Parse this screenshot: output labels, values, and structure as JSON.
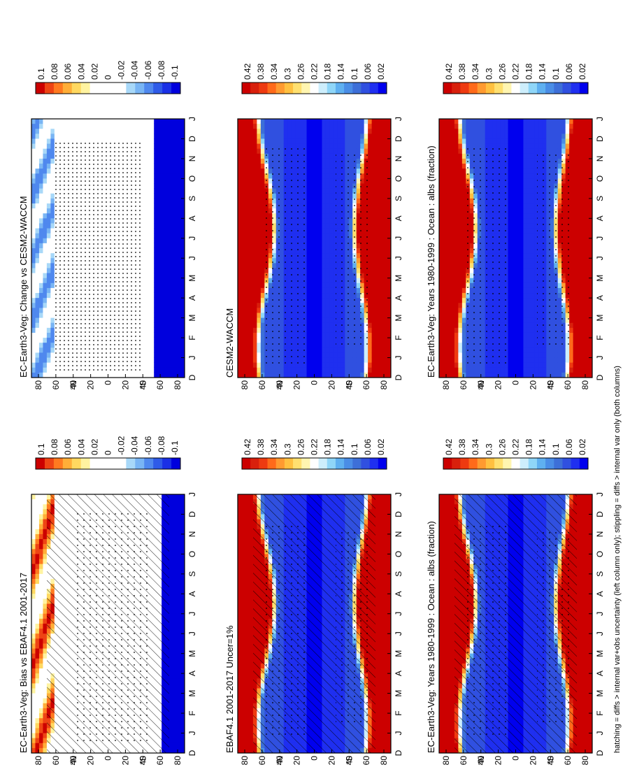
{
  "footer": "hatching = diffs > internal var+obs uncertainty (left column only); stippling = diffs > internal var only (both columns)",
  "palettes": {
    "abs": [
      "#0000ee",
      "#1f2ff0",
      "#3050e0",
      "#3d6fd8",
      "#4a8de6",
      "#5fb0f0",
      "#8fd6f8",
      "#cdeefc",
      "#ffffff",
      "#fff5b0",
      "#ffe070",
      "#ffc040",
      "#ff9a30",
      "#ff6a1a",
      "#ee3a10",
      "#d8200c",
      "#cc0000"
    ],
    "diff": [
      "#0000dd",
      "#1a30e6",
      "#2f5be8",
      "#4f88ee",
      "#79b5f4",
      "#a8d8f8",
      "#ffffff",
      "#ffffff",
      "#ffffff",
      "#ffffff",
      "#fff3a0",
      "#ffd860",
      "#ffae38",
      "#ff7a20",
      "#ee4414",
      "#cc0000"
    ]
  },
  "chart_data": [
    {
      "type": "heatmap",
      "title": "EC-Earth3-Veg: Years 1980-1999 : Ocean : albs (fraction)",
      "x_ticks": [
        "D",
        "J",
        "F",
        "M",
        "A",
        "M",
        "J",
        "J",
        "A",
        "S",
        "O",
        "N",
        "D",
        "J"
      ],
      "y_ticks": [
        "80",
        "60",
        "40",
        "20",
        "0",
        "20",
        "40",
        "60",
        "80"
      ],
      "y_tick_units": [
        "",
        "",
        "°N",
        "",
        "",
        "",
        "°S",
        "",
        ""
      ],
      "colorbar_labels": [
        "0.42",
        "0.38",
        "0.34",
        "0.3",
        "0.26",
        "0.22",
        "0.18",
        "0.14",
        "0.1",
        "0.06",
        "0.02"
      ],
      "palette": "abs",
      "field": "abs",
      "hatch": true,
      "stipple": "model"
    },
    {
      "type": "heatmap",
      "title": "EC-Earth3-Veg: Years 1980-1999 : Ocean : albs (fraction)",
      "x_ticks": [
        "D",
        "J",
        "F",
        "M",
        "A",
        "M",
        "J",
        "J",
        "A",
        "S",
        "O",
        "N",
        "D",
        "J"
      ],
      "y_ticks": [
        "80",
        "60",
        "40",
        "20",
        "0",
        "20",
        "40",
        "60",
        "80"
      ],
      "y_tick_units": [
        "",
        "",
        "°N",
        "",
        "",
        "",
        "°S",
        "",
        ""
      ],
      "colorbar_labels": [
        "0.42",
        "0.38",
        "0.34",
        "0.3",
        "0.26",
        "0.22",
        "0.18",
        "0.14",
        "0.1",
        "0.06",
        "0.02"
      ],
      "palette": "abs",
      "field": "abs",
      "hatch": false,
      "stipple": "model"
    },
    {
      "type": "heatmap",
      "title": "EBAF4.1 2001-2017 Uncer=1%",
      "x_ticks": [
        "D",
        "J",
        "F",
        "M",
        "A",
        "M",
        "J",
        "J",
        "A",
        "S",
        "O",
        "N",
        "D",
        "J"
      ],
      "y_ticks": [
        "80",
        "60",
        "40",
        "20",
        "0",
        "20",
        "40",
        "60",
        "80"
      ],
      "y_tick_units": [
        "",
        "",
        "°N",
        "",
        "",
        "",
        "°S",
        "",
        ""
      ],
      "colorbar_labels": [
        "0.42",
        "0.38",
        "0.34",
        "0.3",
        "0.26",
        "0.22",
        "0.18",
        "0.14",
        "0.1",
        "0.06",
        "0.02"
      ],
      "palette": "abs",
      "field": "abs",
      "hatch": true,
      "stipple": "obs"
    },
    {
      "type": "heatmap",
      "title": "CESM2-WACCM",
      "x_ticks": [
        "D",
        "J",
        "F",
        "M",
        "A",
        "M",
        "J",
        "J",
        "A",
        "S",
        "O",
        "N",
        "D",
        "J"
      ],
      "y_ticks": [
        "80",
        "60",
        "40",
        "20",
        "0",
        "20",
        "40",
        "60",
        "80"
      ],
      "y_tick_units": [
        "",
        "",
        "°N",
        "",
        "",
        "",
        "°S",
        "",
        ""
      ],
      "colorbar_labels": [
        "0.42",
        "0.38",
        "0.34",
        "0.3",
        "0.26",
        "0.22",
        "0.18",
        "0.14",
        "0.1",
        "0.06",
        "0.02"
      ],
      "palette": "abs",
      "field": "abs",
      "hatch": false,
      "stipple": "model"
    },
    {
      "type": "heatmap",
      "title": "EC-Earth3-Veg: Bias vs EBAF4.1 2001-2017",
      "x_ticks": [
        "D",
        "J",
        "F",
        "M",
        "A",
        "M",
        "J",
        "J",
        "A",
        "S",
        "O",
        "N",
        "D",
        "J"
      ],
      "y_ticks": [
        "80",
        "60",
        "40",
        "20",
        "0",
        "20",
        "40",
        "60",
        "80"
      ],
      "y_tick_units": [
        "",
        "",
        "°N",
        "",
        "",
        "",
        "°S",
        "",
        ""
      ],
      "colorbar_labels": [
        "0.1",
        "0.08",
        "0.06",
        "0.04",
        "0.02",
        "0",
        "-0.02",
        "-0.04",
        "-0.06",
        "-0.08",
        "-0.1"
      ],
      "palette": "diff",
      "field": "bias",
      "hatch": true,
      "stipple": "bias"
    },
    {
      "type": "heatmap",
      "title": "EC-Earth3-Veg: Change vs CESM2-WACCM",
      "x_ticks": [
        "D",
        "J",
        "F",
        "M",
        "A",
        "M",
        "J",
        "J",
        "A",
        "S",
        "O",
        "N",
        "D",
        "J"
      ],
      "y_ticks": [
        "80",
        "60",
        "40",
        "20",
        "0",
        "20",
        "40",
        "60",
        "80"
      ],
      "y_tick_units": [
        "",
        "",
        "°N",
        "",
        "",
        "",
        "°S",
        "",
        ""
      ],
      "colorbar_labels": [
        "0.1",
        "0.08",
        "0.06",
        "0.04",
        "0.02",
        "0",
        "-0.02",
        "-0.04",
        "-0.06",
        "-0.08",
        "-0.1"
      ],
      "palette": "diff",
      "field": "change",
      "hatch": false,
      "stipple": "change"
    }
  ]
}
